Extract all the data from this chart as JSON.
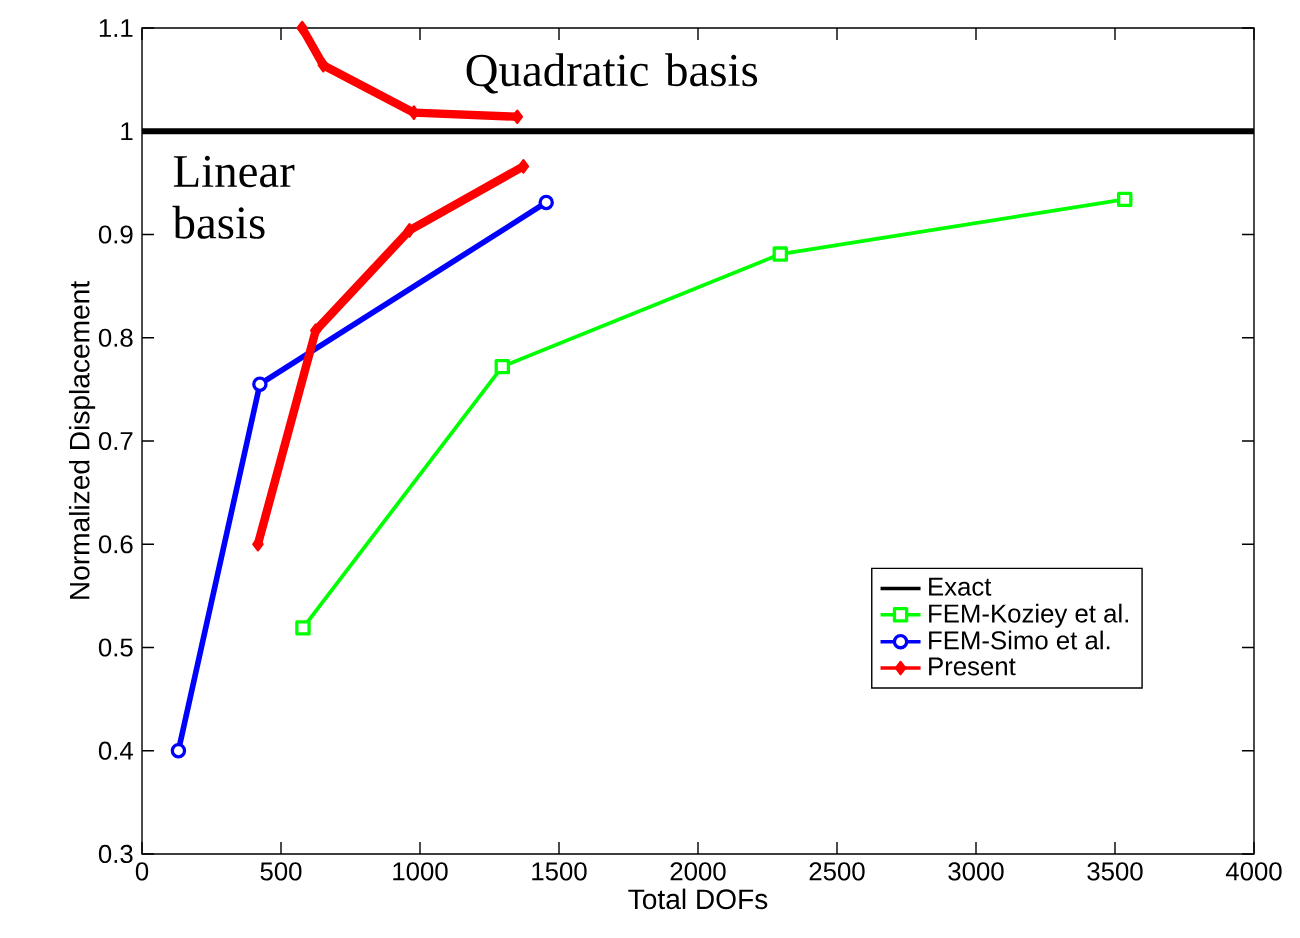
{
  "chart_data": {
    "type": "line",
    "xlabel": "Total DOFs",
    "ylabel": "Normalized Displacement",
    "xlim": [
      0,
      4000
    ],
    "ylim": [
      0.3,
      1.1
    ],
    "xticks": [
      0,
      500,
      1000,
      1500,
      2000,
      2500,
      3000,
      3500,
      4000
    ],
    "yticks": [
      0.3,
      0.4,
      0.5,
      0.6,
      0.7,
      0.8,
      0.9,
      1,
      1.1
    ],
    "legend": "bottom right",
    "line_style": "solid",
    "annotations": [
      "Quadratic basis",
      "Linear basis"
    ],
    "series": [
      {
        "name": "Exact",
        "color": "#000000",
        "marker": "none",
        "x": [
          0,
          4000
        ],
        "values": [
          1,
          1
        ]
      },
      {
        "name": "FEM-Koziey et al.",
        "color": "#00ff00",
        "marker": "square",
        "x": [
          579,
          1296,
          2296,
          3535
        ],
        "values": [
          0.519,
          0.772,
          0.881,
          0.934
        ]
      },
      {
        "name": "FEM-Simo et al.",
        "color": "#0000ff",
        "marker": "circle",
        "x": [
          131,
          424,
          1454
        ],
        "values": [
          0.4,
          0.755,
          0.931
        ]
      },
      {
        "name": "Present",
        "color": "#ff0000",
        "marker": "diamond",
        "x": [
          417,
          625,
          962,
          1372
        ],
        "values": [
          0.6,
          0.807,
          0.904,
          0.966
        ]
      },
      {
        "color": "#ff0000",
        "marker": "diamond",
        "x": [
          576,
          652,
          978,
          1350
        ],
        "values": [
          1.1,
          1.064,
          1.018,
          1.014
        ]
      }
    ]
  }
}
